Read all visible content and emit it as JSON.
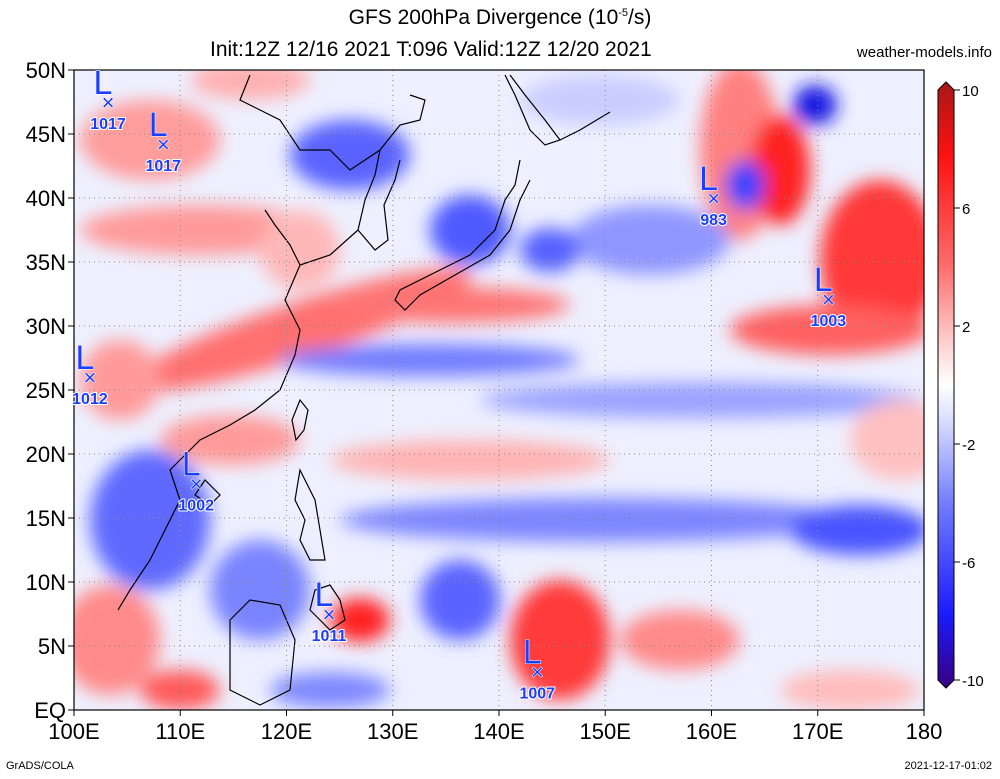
{
  "title": "GFS 200hPa Divergence (10",
  "title_exp": "-5",
  "title_unit": "/s)",
  "subtitle": "Init:12Z 12/16 2021 T:096 Valid:12Z 12/20 2021",
  "site": "weather-models.info",
  "footer_left": "GrADS/COLA",
  "footer_right": "2021-12-17-01:02",
  "map": {
    "lon_labels": [
      {
        "lon": 100,
        "label": "100E"
      },
      {
        "lon": 110,
        "label": "110E"
      },
      {
        "lon": 120,
        "label": "120E"
      },
      {
        "lon": 130,
        "label": "130E"
      },
      {
        "lon": 140,
        "label": "140E"
      },
      {
        "lon": 150,
        "label": "150E"
      },
      {
        "lon": 160,
        "label": "160E"
      },
      {
        "lon": 170,
        "label": "170E"
      },
      {
        "lon": 180,
        "label": "180"
      }
    ],
    "lat_labels": [
      {
        "lat": 50,
        "label": "50N"
      },
      {
        "lat": 45,
        "label": "45N"
      },
      {
        "lat": 40,
        "label": "40N"
      },
      {
        "lat": 35,
        "label": "35N"
      },
      {
        "lat": 30,
        "label": "30N"
      },
      {
        "lat": 25,
        "label": "25N"
      },
      {
        "lat": 20,
        "label": "20N"
      },
      {
        "lat": 15,
        "label": "15N"
      },
      {
        "lat": 10,
        "label": "10N"
      },
      {
        "lat": 5,
        "label": "5N"
      },
      {
        "lat": 0,
        "label": "EQ"
      }
    ],
    "lon_range": [
      100,
      180
    ],
    "lat_range": [
      0,
      50
    ]
  },
  "colorbar": {
    "min": -10,
    "max": 10,
    "tick_labels": [
      {
        "value": 10,
        "label": "10"
      },
      {
        "value": 6,
        "label": "6"
      },
      {
        "value": 2,
        "label": "2"
      },
      {
        "value": -2,
        "label": "-2"
      },
      {
        "value": -6,
        "label": "-6"
      },
      {
        "value": -10,
        "label": "-10"
      }
    ],
    "colors": [
      "#3a0080",
      "#1a1aff",
      "#6f7aff",
      "#c7cdff",
      "#ffffff",
      "#ffc2c2",
      "#ff6a6a",
      "#ff1010",
      "#b51a1a"
    ]
  },
  "lows": [
    {
      "lat": 47.5,
      "lon": 103.2,
      "label": "1017"
    },
    {
      "lat": 44.2,
      "lon": 108.4,
      "label": "1017"
    },
    {
      "lat": 26.0,
      "lon": 101.5,
      "label": "1012"
    },
    {
      "lat": 17.7,
      "lon": 111.5,
      "label": "1002"
    },
    {
      "lat": 7.5,
      "lon": 124.0,
      "label": "1011"
    },
    {
      "lat": 3.0,
      "lon": 143.6,
      "label": "1007"
    },
    {
      "lat": 40.0,
      "lon": 160.2,
      "label": "983"
    },
    {
      "lat": 32.1,
      "lon": 171.0,
      "label": "1003"
    }
  ],
  "low_symbol": "L",
  "low_marker": "×",
  "colors": {
    "low_text": "#1a3dff",
    "grid": "#8a8a8a",
    "coast": "#000000"
  }
}
